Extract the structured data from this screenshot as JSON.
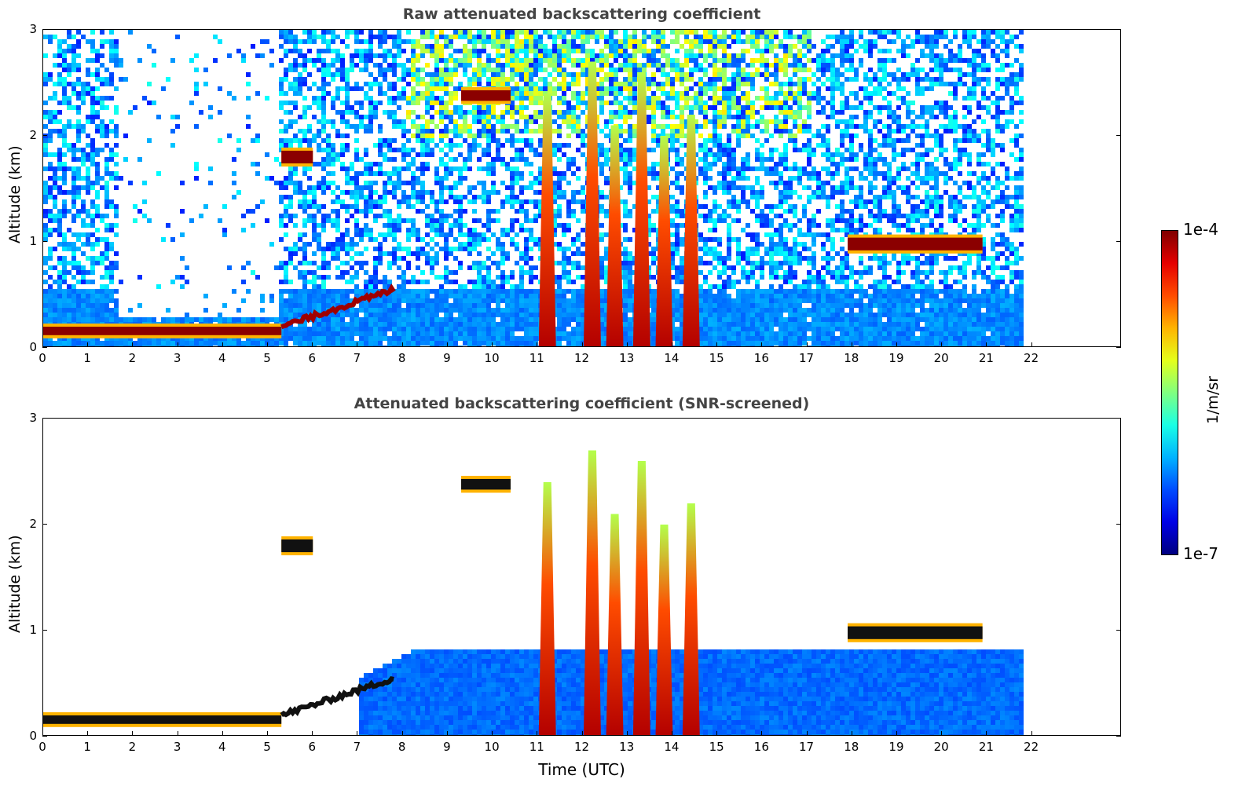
{
  "chart_data": [
    {
      "type": "heatmap",
      "title": "Raw attenuated backscattering coefficient",
      "ylabel": "Altitude (km)",
      "xlabel": "",
      "x_ticks": [
        "0",
        "1",
        "2",
        "3",
        "4",
        "5",
        "6",
        "7",
        "8",
        "9",
        "10",
        "11",
        "12",
        "13",
        "14",
        "15",
        "16",
        "17",
        "18",
        "19",
        "20",
        "21",
        "22"
      ],
      "y_ticks": [
        "0",
        "1",
        "2",
        "3"
      ],
      "xlim": [
        0,
        24
      ],
      "ylim": [
        0,
        3
      ],
      "data_end_time": 21.8,
      "layers": [
        {
          "name": "boundary-layer",
          "t0": 0.0,
          "t1": 5.3,
          "alt": 0.16,
          "thick": 0.08
        },
        {
          "name": "rising-layer",
          "t0": 5.3,
          "t1": 7.8,
          "alt_start": 0.2,
          "alt_end": 0.55
        },
        {
          "name": "cloud-layer",
          "t0": 17.9,
          "t1": 20.9,
          "alt": 0.98,
          "thick": 0.12
        },
        {
          "name": "elevated-cloud",
          "t0": 5.3,
          "t1": 6.0,
          "alt": 1.8,
          "thick": 0.12
        },
        {
          "name": "elevated-cloud",
          "t0": 9.3,
          "t1": 10.4,
          "alt": 2.38,
          "thick": 0.1
        }
      ],
      "precip_columns": [
        {
          "t": 11.2,
          "top": 2.4
        },
        {
          "t": 12.2,
          "top": 2.7
        },
        {
          "t": 12.7,
          "top": 2.1
        },
        {
          "t": 13.3,
          "top": 2.6
        },
        {
          "t": 13.8,
          "top": 2.0
        },
        {
          "t": 14.4,
          "top": 2.2
        }
      ]
    },
    {
      "type": "heatmap",
      "title": "Attenuated backscattering coefficient (SNR-screened)",
      "ylabel": "Altitude (km)",
      "xlabel": "Time (UTC)",
      "x_ticks": [
        "0",
        "1",
        "2",
        "3",
        "4",
        "5",
        "6",
        "7",
        "8",
        "9",
        "10",
        "11",
        "12",
        "13",
        "14",
        "15",
        "16",
        "17",
        "18",
        "19",
        "20",
        "21",
        "22"
      ],
      "y_ticks": [
        "0",
        "1",
        "2",
        "3"
      ],
      "xlim": [
        0,
        24
      ],
      "ylim": [
        0,
        3
      ],
      "data_end_time": 21.8
    }
  ],
  "colorbar": {
    "label": "1/m/sr",
    "max_label": "1e-4",
    "min_label": "1e-7",
    "scale": "log",
    "colormap": "jet"
  }
}
